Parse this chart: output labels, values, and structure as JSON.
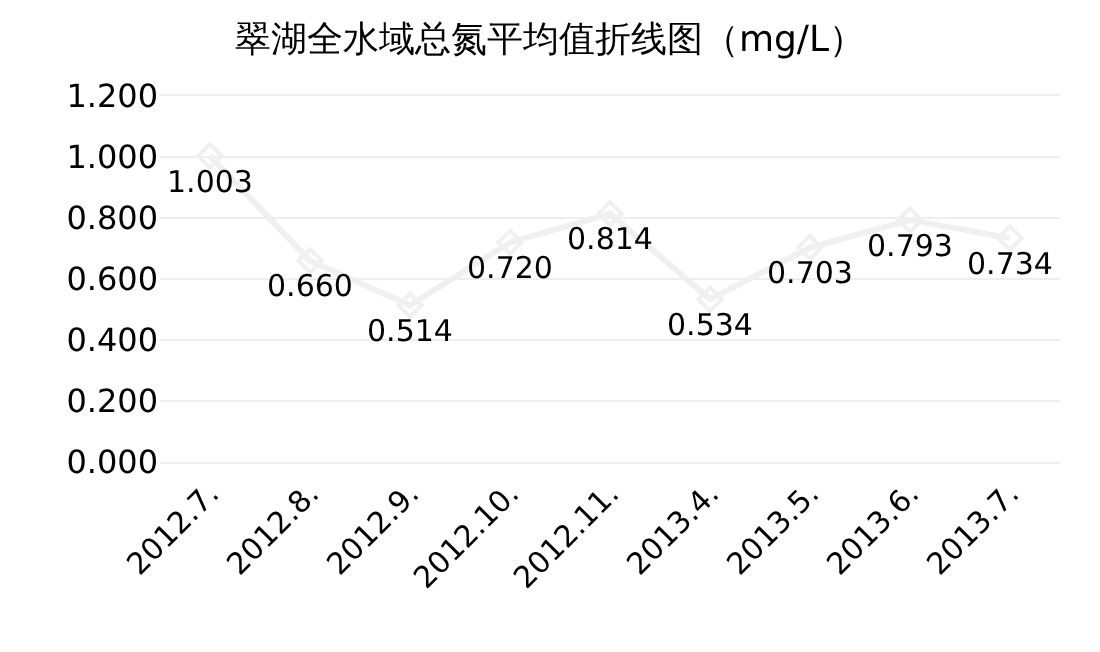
{
  "chart_data": {
    "type": "line",
    "title": "翠湖全水域总氮平均值折线图（mg/L）",
    "categories": [
      "2012.7.",
      "2012.8.",
      "2012.9.",
      "2012.10.",
      "2012.11.",
      "2013.4.",
      "2013.5.",
      "2013.6.",
      "2013.7."
    ],
    "series": [
      {
        "color": "#f0f0f0",
        "values": [
          1.003,
          0.66,
          0.514,
          0.72,
          0.814,
          0.534,
          0.703,
          0.793,
          0.734
        ],
        "value_labels": [
          "1.003",
          "0.660",
          "0.514",
          "0.720",
          "0.814",
          "0.534",
          "0.703",
          "0.793",
          "0.734"
        ]
      }
    ],
    "ylim": [
      0,
      1.2
    ],
    "yticks": [
      {
        "value": 0,
        "label": "0.000"
      },
      {
        "value": 0.2,
        "label": "0.200"
      },
      {
        "value": 0.4,
        "label": "0.400"
      },
      {
        "value": 0.6,
        "label": "0.600"
      },
      {
        "value": 0.8,
        "label": "0.800"
      },
      {
        "value": 1.0,
        "label": "1.000"
      },
      {
        "value": 1.2,
        "label": "1.200"
      }
    ],
    "grid": "y",
    "marker": "diamond",
    "line_style": "solid"
  }
}
